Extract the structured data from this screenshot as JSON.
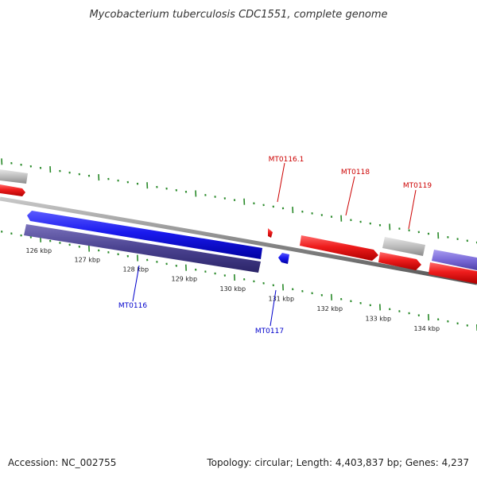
{
  "title": "Mycobacterium tuberculosis CDC1551, complete genome",
  "footer": {
    "accession": "Accession: NC_002755",
    "summary": "Topology: circular; Length: 4,403,837 bp; Genes: 4,237"
  },
  "ticks": [
    "126 kbp",
    "127 kbp",
    "128 kbp",
    "129 kbp",
    "130 kbp",
    "131 kbp",
    "132 kbp",
    "133 kbp",
    "134 kbp"
  ],
  "genes": [
    {
      "name": "MT0116.1",
      "strand": "forward",
      "color": "#cc0000"
    },
    {
      "name": "MT0118",
      "strand": "forward",
      "color": "#cc0000"
    },
    {
      "name": "MT0119",
      "strand": "forward",
      "color": "#cc0000"
    },
    {
      "name": "MT0116",
      "strand": "reverse",
      "color": "#0000cc"
    },
    {
      "name": "MT0117",
      "strand": "reverse",
      "color": "#0000cc"
    }
  ],
  "colors": {
    "forward_gene": "#ee1c1c",
    "reverse_gene": "#1a1aee",
    "reverse_cds_dark": "#4a4290",
    "other_feature": "#b8b8b8",
    "light_purple": "#7a6ad8",
    "backbone": "#888888",
    "ticks": "#2a8a2a"
  }
}
